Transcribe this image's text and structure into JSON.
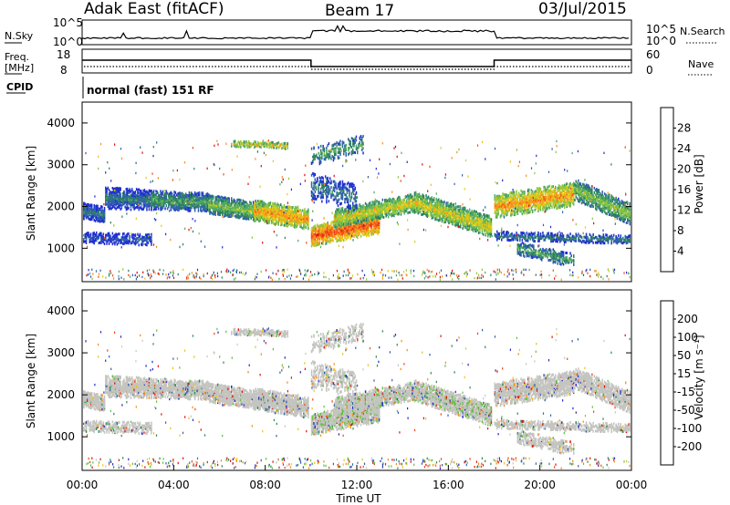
{
  "header": {
    "station": "Adak East (fitACF)",
    "beam": "Beam 17",
    "date": "03/Jul/2015"
  },
  "top_panel": {
    "left_label": "N.Sky",
    "right_label": "N.Search",
    "left_ticks": [
      "10^5",
      "10^0"
    ],
    "right_ticks": [
      "10^5",
      "10^0"
    ]
  },
  "freq_panel": {
    "left_label_line1": "Freq.",
    "left_label_line2": "[MHz]",
    "right_label": "Nave",
    "left_ticks": [
      "18",
      "8"
    ],
    "right_ticks": [
      "60",
      "0"
    ],
    "cpid_label": "CPID",
    "cpid_text": "normal (fast) 151 RF"
  },
  "colors": {
    "power": [
      "#2030d0",
      "#3060b0",
      "#2e8060",
      "#50a868",
      "#8cc840",
      "#e8c818",
      "#f89020",
      "#f05018",
      "#e01010"
    ],
    "velocity": [
      "#2828c8",
      "#3060b0",
      "#2e8a50",
      "#60c040",
      "#c8c8c8",
      "#f0c018",
      "#f88c10",
      "#f04818",
      "#e01010"
    ],
    "gray_scatter": "#c4c4c0"
  },
  "chart_data": [
    {
      "type": "heatmap",
      "name": "power-panel",
      "xlabel": "",
      "ylabel": "Slant Range [km]",
      "yticks": [
        "1000",
        "2000",
        "3000",
        "4000"
      ],
      "ylim": [
        200,
        4500
      ],
      "colorbar": {
        "label": "Power [dB]",
        "ticks": [
          "4",
          "8",
          "12",
          "16",
          "20",
          "24",
          "28"
        ]
      },
      "xlim_hours": [
        0,
        24
      ]
    },
    {
      "type": "heatmap",
      "name": "velocity-panel",
      "xlabel": "Time UT",
      "ylabel": "Slant Range [km]",
      "yticks": [
        "1000",
        "2000",
        "3000",
        "4000"
      ],
      "xticks": [
        "00:00",
        "04:00",
        "08:00",
        "12:00",
        "16:00",
        "20:00",
        "00:00"
      ],
      "ylim": [
        200,
        4500
      ],
      "colorbar": {
        "label": "Velocity [m s⁻¹]",
        "ticks": [
          "200",
          "100",
          "50",
          "15",
          "-15",
          "-50",
          "-100",
          "-200"
        ]
      },
      "xlim_hours": [
        0,
        24
      ]
    }
  ]
}
